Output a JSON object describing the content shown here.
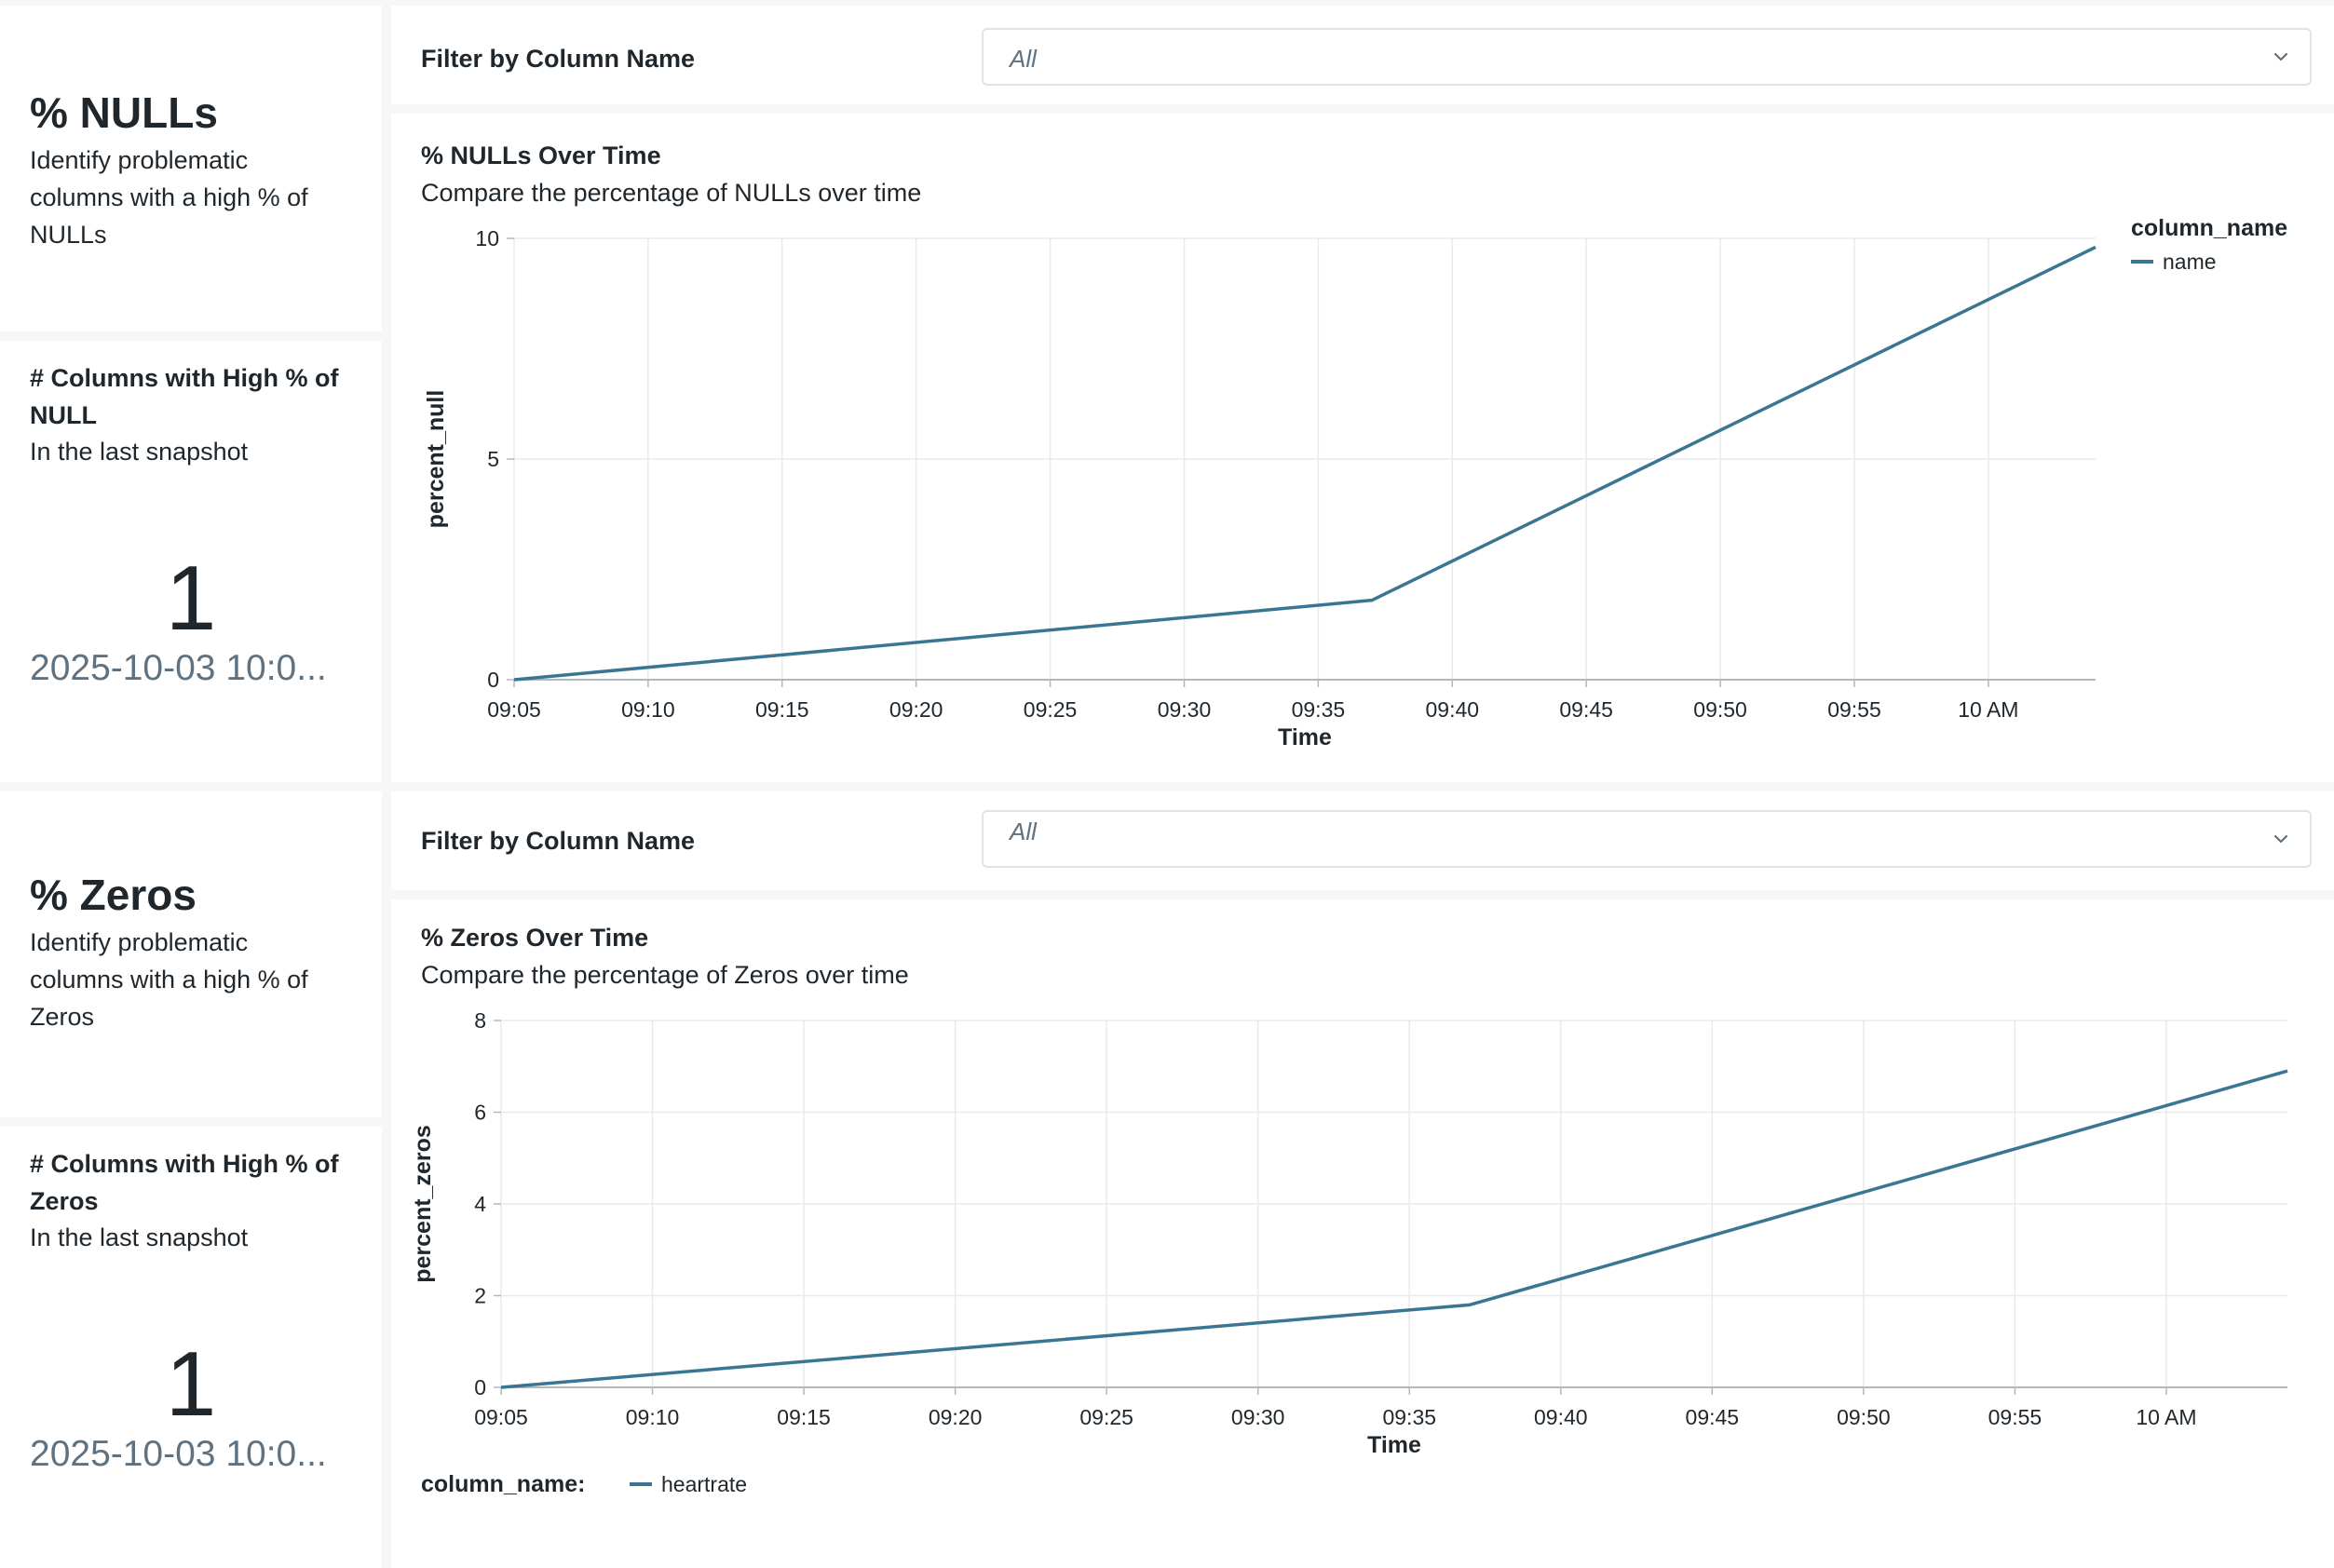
{
  "nulls": {
    "section": {
      "title": "% NULLs",
      "description": "Identify problematic columns with a high % of NULLs"
    },
    "kpi": {
      "title": "# Columns with High % of NULL",
      "subtitle": "In the last snapshot",
      "value": "1",
      "date": "2025-10-03 10:0..."
    },
    "filter": {
      "label": "Filter by Column Name",
      "value": "All"
    },
    "chart": {
      "title": "% NULLs Over Time",
      "subtitle": "Compare the percentage of NULLs over time"
    }
  },
  "zeros": {
    "section": {
      "title": "% Zeros",
      "description": "Identify problematic columns with a high % of Zeros"
    },
    "kpi": {
      "title": "# Columns with High % of Zeros",
      "subtitle": "In the last snapshot",
      "value": "1",
      "date": "2025-10-03 10:0..."
    },
    "filter": {
      "label": "Filter by Column Name",
      "value": "All"
    },
    "chart": {
      "title": "% Zeros Over Time",
      "subtitle": "Compare the percentage of Zeros over time"
    }
  },
  "colors": {
    "line": "#3a7592",
    "grid": "#e8eaed",
    "axis": "#b3b8bd"
  },
  "icons": {
    "dropdown": "chevron-down-icon"
  },
  "chart_data": [
    {
      "type": "line",
      "title": "% NULLs Over Time",
      "subtitle": "Compare the percentage of NULLs over time",
      "xlabel": "Time",
      "ylabel": "percent_null",
      "x_ticks": [
        "09:05",
        "09:10",
        "09:15",
        "09:20",
        "09:25",
        "09:30",
        "09:35",
        "09:40",
        "09:45",
        "09:50",
        "09:55",
        "10 AM"
      ],
      "y_ticks": [
        0,
        5,
        10
      ],
      "xlim": [
        "09:05",
        "10:04"
      ],
      "ylim": [
        0,
        10
      ],
      "grid": true,
      "legend_title": "column_name",
      "legend_position": "right",
      "series": [
        {
          "name": "name",
          "points": [
            {
              "x": "09:05",
              "y": 0
            },
            {
              "x": "09:37",
              "y": 1.8
            },
            {
              "x": "10:04",
              "y": 9.8
            }
          ]
        }
      ]
    },
    {
      "type": "line",
      "title": "% Zeros Over Time",
      "subtitle": "Compare the percentage of Zeros over time",
      "xlabel": "Time",
      "ylabel": "percent_zeros",
      "x_ticks": [
        "09:05",
        "09:10",
        "09:15",
        "09:20",
        "09:25",
        "09:30",
        "09:35",
        "09:40",
        "09:45",
        "09:50",
        "09:55",
        "10 AM"
      ],
      "y_ticks": [
        0,
        2,
        4,
        6,
        8
      ],
      "xlim": [
        "09:05",
        "10:04"
      ],
      "ylim": [
        0,
        8
      ],
      "grid": true,
      "legend_title": "column_name:",
      "legend_position": "bottom-left",
      "series": [
        {
          "name": "heartrate",
          "points": [
            {
              "x": "09:05",
              "y": 0
            },
            {
              "x": "09:37",
              "y": 1.8
            },
            {
              "x": "10:04",
              "y": 6.9
            }
          ]
        }
      ]
    }
  ]
}
